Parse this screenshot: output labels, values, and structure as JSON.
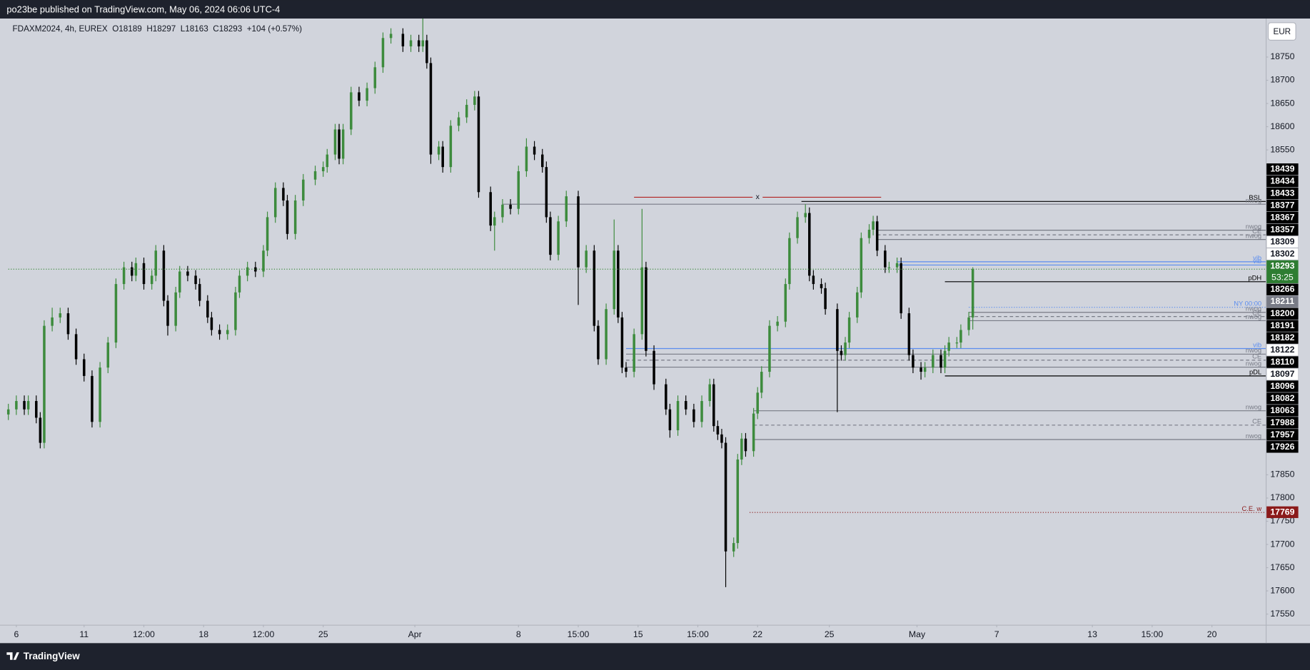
{
  "header": {
    "publisher": "po23be published on TradingView.com, May 06, 2024 06:06 UTC-4",
    "currency": "EUR",
    "logo": "TradingView"
  },
  "chart_data": {
    "type": "candlestick",
    "legend": {
      "symbol": "FDAXM2024, 4h, EUREX",
      "open": "O18189",
      "high": "H18297",
      "low": "L18163",
      "close": "C18293",
      "change": "+104 (+0.57%)"
    },
    "x": [
      0,
      2,
      4,
      5,
      7,
      8,
      9,
      11,
      13,
      15,
      17,
      19,
      21,
      23,
      25,
      27,
      29,
      31,
      32,
      34,
      36,
      37,
      39,
      40,
      42,
      43,
      45,
      47,
      48,
      50,
      51,
      53,
      55,
      57,
      58,
      60,
      62,
      64,
      65,
      67,
      69,
      70,
      72,
      74,
      77,
      79,
      80,
      82,
      83,
      84,
      86,
      88,
      90,
      92,
      94,
      96,
      99,
      101,
      103,
      104,
      105,
      106,
      108,
      109,
      111,
      113,
      115,
      117,
      118,
      121,
      122,
      124,
      126,
      128,
      130,
      132,
      134,
      135,
      136,
      138,
      140,
      143,
      145,
      147,
      148,
      150,
      152,
      153,
      154,
      155,
      157,
      159,
      160,
      162,
      165,
      166,
      168,
      170,
      172,
      174,
      176,
      177,
      178,
      179,
      180,
      182,
      183,
      184,
      185,
      187,
      188,
      189,
      191,
      193,
      195,
      196,
      198,
      200,
      201,
      202,
      204,
      205,
      208,
      209,
      210,
      211,
      213,
      214,
      216,
      217,
      218,
      220,
      221,
      223,
      224,
      226,
      227,
      229,
      230,
      232,
      234,
      235,
      236,
      238,
      239,
      241,
      242
    ],
    "open": [
      17980,
      17991,
      18009,
      17991,
      18009,
      17973,
      17919,
      18171,
      18189,
      18198,
      18153,
      18099,
      18063,
      17964,
      18081,
      18135,
      18261,
      18297,
      18279,
      18306,
      18261,
      18279,
      18333,
      18225,
      18171,
      18243,
      18288,
      18279,
      18261,
      18225,
      18189,
      18162,
      18153,
      18162,
      18243,
      18279,
      18297,
      18288,
      18333,
      18405,
      18468,
      18441,
      18369,
      18441,
      18486,
      18504,
      18513,
      18540,
      18594,
      18531,
      18594,
      18674,
      18656,
      18683,
      18728,
      18791,
      18800,
      18773,
      18786,
      18773,
      18786,
      18737,
      18540,
      18557,
      18513,
      18602,
      18620,
      18647,
      18665,
      18459,
      18387,
      18405,
      18432,
      18423,
      18504,
      18557,
      18540,
      18513,
      18405,
      18324,
      18396,
      18450,
      18297,
      18333,
      18171,
      18099,
      18207,
      18333,
      18189,
      18081,
      18072,
      18153,
      18297,
      18117,
      18045,
      17991,
      17946,
      18009,
      17991,
      17964,
      18009,
      18045,
      17955,
      17937,
      17919,
      17685,
      17703,
      17883,
      17928,
      17901,
      17982,
      18027,
      18072,
      18171,
      18180,
      18261,
      18360,
      18405,
      18414,
      18279,
      18261,
      18252,
      18207,
      18117,
      18108,
      18135,
      18189,
      18243,
      18360,
      18378,
      18396,
      18333,
      18297,
      18297,
      18306,
      18198,
      18108,
      18081,
      18072,
      18081,
      18108,
      18081,
      18117,
      18135,
      18135,
      18162,
      18189
    ],
    "high": [
      18003,
      18021,
      18021,
      18021,
      18021,
      17985,
      18183,
      18210,
      18210,
      18210,
      18165,
      18111,
      18075,
      18093,
      18147,
      18273,
      18309,
      18309,
      18318,
      18318,
      18291,
      18345,
      18345,
      18237,
      18255,
      18300,
      18300,
      18291,
      18273,
      18237,
      18201,
      18174,
      18174,
      18255,
      18291,
      18309,
      18309,
      18345,
      18417,
      18480,
      18480,
      18453,
      18453,
      18498,
      18516,
      18525,
      18552,
      18606,
      18606,
      18606,
      18686,
      18686,
      18695,
      18740,
      18803,
      18812,
      18812,
      18798,
      18798,
      18833,
      18798,
      18749,
      18569,
      18569,
      18614,
      18632,
      18659,
      18677,
      18677,
      18471,
      18417,
      18444,
      18444,
      18516,
      18575,
      18569,
      18552,
      18525,
      18417,
      18408,
      18462,
      18462,
      18345,
      18345,
      18183,
      18219,
      18400,
      18345,
      18201,
      18093,
      18165,
      18423,
      18309,
      18129,
      18057,
      18003,
      18021,
      18021,
      18003,
      18021,
      18057,
      18057,
      17967,
      17949,
      17931,
      17715,
      17895,
      17940,
      17940,
      17994,
      18039,
      18084,
      18183,
      18192,
      18273,
      18372,
      18417,
      18433,
      18426,
      18291,
      18273,
      18264,
      18219,
      18129,
      18147,
      18201,
      18255,
      18372,
      18390,
      18408,
      18408,
      18345,
      18309,
      18318,
      18318,
      18210,
      18120,
      18093,
      18093,
      18120,
      18120,
      18129,
      18147,
      18147,
      18174,
      18201,
      18297
    ],
    "low": [
      17968,
      17979,
      17979,
      17979,
      17961,
      17907,
      17907,
      18159,
      18177,
      18141,
      18087,
      18051,
      17952,
      17952,
      18069,
      18123,
      18249,
      18267,
      18267,
      18249,
      18249,
      18267,
      18213,
      18150,
      18159,
      18231,
      18267,
      18249,
      18213,
      18177,
      18150,
      18141,
      18141,
      18150,
      18231,
      18267,
      18276,
      18276,
      18321,
      18393,
      18429,
      18357,
      18357,
      18429,
      18474,
      18492,
      18501,
      18528,
      18519,
      18519,
      18582,
      18644,
      18644,
      18671,
      18716,
      18779,
      18761,
      18761,
      18761,
      18761,
      18725,
      18520,
      18528,
      18501,
      18501,
      18590,
      18608,
      18635,
      18447,
      18375,
      18333,
      18393,
      18411,
      18411,
      18492,
      18528,
      18501,
      18393,
      18312,
      18312,
      18384,
      18216,
      18285,
      18159,
      18087,
      18087,
      18195,
      18177,
      18069,
      18060,
      18060,
      18141,
      18105,
      18033,
      17979,
      17930,
      17934,
      17979,
      17952,
      17952,
      17997,
      17943,
      17925,
      17907,
      17608,
      17673,
      17691,
      17871,
      17889,
      17889,
      17970,
      18015,
      18060,
      18159,
      18168,
      18249,
      18348,
      18393,
      18267,
      18249,
      18240,
      18195,
      17985,
      18096,
      18096,
      18123,
      18177,
      18231,
      18348,
      18366,
      18321,
      18285,
      18285,
      18285,
      18186,
      18096,
      18069,
      18055,
      18060,
      18069,
      18069,
      18069,
      18105,
      18123,
      18123,
      18150,
      18163
    ],
    "close": [
      17991,
      18009,
      17991,
      18009,
      17973,
      17919,
      18171,
      18189,
      18198,
      18153,
      18099,
      18063,
      17964,
      18081,
      18135,
      18261,
      18297,
      18279,
      18306,
      18261,
      18279,
      18333,
      18225,
      18171,
      18243,
      18288,
      18279,
      18261,
      18225,
      18189,
      18162,
      18153,
      18162,
      18243,
      18279,
      18297,
      18288,
      18333,
      18405,
      18468,
      18441,
      18369,
      18441,
      18486,
      18504,
      18513,
      18540,
      18594,
      18531,
      18594,
      18674,
      18656,
      18683,
      18728,
      18791,
      18800,
      18773,
      18786,
      18773,
      18786,
      18737,
      18540,
      18557,
      18513,
      18602,
      18620,
      18647,
      18665,
      18459,
      18387,
      18405,
      18432,
      18423,
      18504,
      18557,
      18540,
      18513,
      18405,
      18324,
      18396,
      18450,
      18297,
      18333,
      18171,
      18099,
      18207,
      18333,
      18189,
      18081,
      18072,
      18153,
      18297,
      18117,
      18045,
      17991,
      17946,
      18009,
      17991,
      17964,
      18009,
      18045,
      17955,
      17937,
      17919,
      17685,
      17703,
      17883,
      17928,
      17901,
      17982,
      18027,
      18072,
      18171,
      18180,
      18261,
      18360,
      18405,
      18414,
      18279,
      18261,
      18252,
      18207,
      18117,
      18108,
      18135,
      18189,
      18243,
      18360,
      18378,
      18396,
      18333,
      18297,
      18297,
      18306,
      18198,
      18108,
      18081,
      18072,
      18081,
      18108,
      18081,
      18117,
      18135,
      18135,
      18162,
      18189,
      18293
    ],
    "up_color": "#3d8b3d",
    "down_color": "#000000",
    "last_price_color": "#3d8b3d",
    "xlim": [
      0,
      315.5
    ],
    "xticks": [
      {
        "value": 2,
        "label": "6"
      },
      {
        "value": 19,
        "label": "11"
      },
      {
        "value": 34,
        "label": "12:00"
      },
      {
        "value": 49,
        "label": "18"
      },
      {
        "value": 64,
        "label": "12:00"
      },
      {
        "value": 79,
        "label": "25"
      },
      {
        "value": 102,
        "label": "Apr"
      },
      {
        "value": 128,
        "label": "8"
      },
      {
        "value": 143,
        "label": "15:00"
      },
      {
        "value": 158,
        "label": "15"
      },
      {
        "value": 173,
        "label": "15:00"
      },
      {
        "value": 188,
        "label": "22"
      },
      {
        "value": 206,
        "label": "25"
      },
      {
        "value": 228,
        "label": "May"
      },
      {
        "value": 248,
        "label": "7"
      },
      {
        "value": 272,
        "label": "13"
      },
      {
        "value": 287,
        "label": "15:00"
      },
      {
        "value": 302,
        "label": "20"
      }
    ],
    "ylim": [
      17527,
      18833
    ],
    "yticks": [
      17550,
      17600,
      17650,
      17700,
      17750,
      17800,
      17850,
      18550,
      18600,
      18650,
      18700,
      18750
    ],
    "levels": [
      {
        "label": "BSL",
        "value": 18439,
        "x0": 199,
        "style": "solid",
        "color": "#000000"
      },
      {
        "label": "nwog",
        "value": 18433,
        "x0": 124,
        "style": "solid",
        "color": "#787b86"
      },
      {
        "label": "x",
        "value": 18448,
        "x0": 157,
        "x1": 219,
        "style": "solid",
        "color": "#b22222"
      },
      {
        "label": "nwog",
        "value": 18377,
        "x0": 218,
        "style": "solid",
        "color": "#787b86"
      },
      {
        "label": "CE",
        "value": 18367,
        "x0": 218,
        "style": "dashed",
        "color": "#787b86"
      },
      {
        "label": "nwog",
        "value": 18357,
        "x0": 218,
        "style": "solid",
        "color": "#787b86"
      },
      {
        "label": "vib",
        "value": 18309,
        "x0": 223,
        "style": "solid",
        "color": "#5b8def"
      },
      {
        "label": "vib",
        "value": 18302,
        "x0": 223,
        "style": "solid",
        "color": "#5b8def"
      },
      {
        "label": "pDH",
        "value": 18266,
        "x0": 235,
        "style": "solid",
        "color": "#000000"
      },
      {
        "label": "NY 00:00",
        "value": 18211,
        "x0": 241,
        "style": "dotted",
        "color": "#5b8def"
      },
      {
        "label": "nwog",
        "value": 18200,
        "x0": 241,
        "style": "solid",
        "color": "#787b86"
      },
      {
        "label": "CE",
        "value": 18191,
        "x0": 241,
        "style": "dashed",
        "color": "#787b86"
      },
      {
        "label": "nwog",
        "value": 18182,
        "x0": 241,
        "style": "solid",
        "color": "#787b86"
      },
      {
        "label": "vib",
        "value": 18122,
        "x0": 155,
        "style": "solid",
        "color": "#5b8def"
      },
      {
        "label": "nwog",
        "value": 18110,
        "x0": 155,
        "style": "solid",
        "color": "#787b86"
      },
      {
        "label": "CE",
        "value": 18097,
        "x0": 155,
        "style": "dashed",
        "color": "#787b86"
      },
      {
        "label": "nwog",
        "value": 18082,
        "x0": 155,
        "style": "solid",
        "color": "#787b86"
      },
      {
        "label": "pDL",
        "value": 18063,
        "x0": 235,
        "style": "solid",
        "color": "#000000"
      },
      {
        "label": "nwog",
        "value": 17988,
        "x0": 187,
        "style": "solid",
        "color": "#787b86"
      },
      {
        "label": "CE",
        "value": 17957,
        "x0": 187,
        "style": "dashed",
        "color": "#787b86"
      },
      {
        "label": "nwog",
        "value": 17926,
        "x0": 187,
        "style": "solid",
        "color": "#787b86"
      },
      {
        "label": "C.E. w",
        "value": 17769,
        "x0": 186,
        "style": "dotted",
        "color": "#8b1a1a"
      }
    ],
    "price_labels": [
      {
        "value": 18439,
        "bg": "#000000",
        "fg": "#ffffff"
      },
      {
        "value": 18434,
        "bg": "#000000",
        "fg": "#ffffff"
      },
      {
        "value": 18433,
        "bg": "#000000",
        "fg": "#ffffff"
      },
      {
        "value": 18377,
        "bg": "#000000",
        "fg": "#ffffff"
      },
      {
        "value": 18367,
        "bg": "#000000",
        "fg": "#ffffff"
      },
      {
        "value": 18357,
        "bg": "#000000",
        "fg": "#ffffff"
      },
      {
        "value": 18309,
        "bg": "#ffffff",
        "fg": "#131722"
      },
      {
        "value": 18302,
        "bg": "#ffffff",
        "fg": "#131722"
      },
      {
        "value": 18293,
        "bg": "#2e7d32",
        "fg": "#ffffff",
        "sub": "53:25"
      },
      {
        "value": 18266,
        "bg": "#000000",
        "fg": "#ffffff"
      },
      {
        "value": 18211,
        "bg": "#787b86",
        "fg": "#ffffff"
      },
      {
        "value": 18200,
        "bg": "#000000",
        "fg": "#ffffff"
      },
      {
        "value": 18191,
        "bg": "#000000",
        "fg": "#ffffff"
      },
      {
        "value": 18182,
        "bg": "#000000",
        "fg": "#ffffff"
      },
      {
        "value": 18122,
        "bg": "#ffffff",
        "fg": "#131722"
      },
      {
        "value": 18110,
        "bg": "#000000",
        "fg": "#ffffff"
      },
      {
        "value": 18097,
        "bg": "#ffffff",
        "fg": "#131722"
      },
      {
        "value": 18096,
        "bg": "#000000",
        "fg": "#ffffff"
      },
      {
        "value": 18082,
        "bg": "#000000",
        "fg": "#ffffff"
      },
      {
        "value": 18063,
        "bg": "#000000",
        "fg": "#ffffff"
      },
      {
        "value": 17988,
        "bg": "#000000",
        "fg": "#ffffff"
      },
      {
        "value": 17957,
        "bg": "#000000",
        "fg": "#ffffff"
      },
      {
        "value": 17926,
        "bg": "#000000",
        "fg": "#ffffff"
      },
      {
        "value": 17769,
        "bg": "#8b1a1a",
        "fg": "#ffffff"
      }
    ]
  }
}
